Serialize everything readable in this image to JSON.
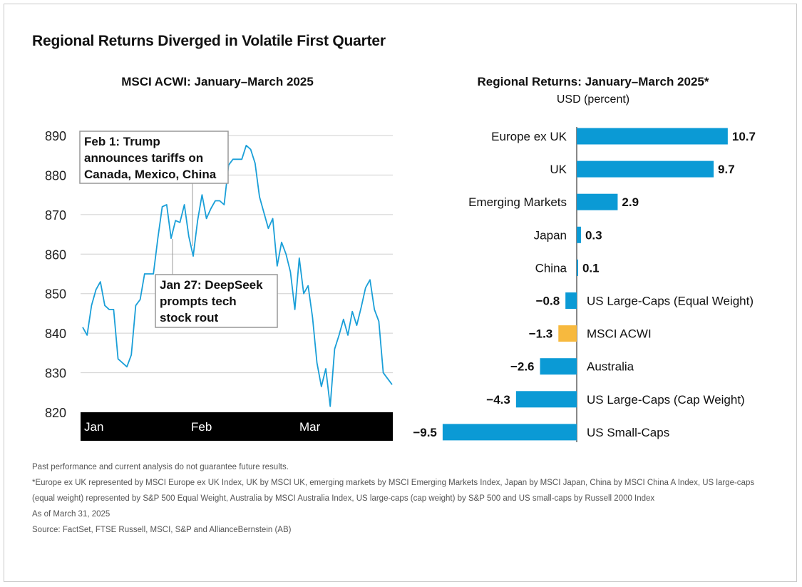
{
  "title": "Regional Returns Diverged in Volatile First Quarter",
  "left_subtitle": "MSCI ACWI: January–March 2025",
  "right_subtitle": "Regional Returns: January–March 2025*",
  "right_unit": "USD (percent)",
  "colors": {
    "line": "#1a9fd8",
    "bar": "#0b9ad5",
    "highlight_bar": "#f7b93e",
    "axis_band": "#000000",
    "grid": "#cfcfcf"
  },
  "chart_data": [
    {
      "type": "line",
      "title": "MSCI ACWI: January–March 2025",
      "xlabel": "",
      "ylabel": "",
      "ylim": [
        820,
        890
      ],
      "yticks": [
        820,
        830,
        840,
        850,
        860,
        870,
        880,
        890
      ],
      "month_labels": [
        "Jan",
        "Feb",
        "Mar"
      ],
      "grid": true,
      "series": [
        {
          "values": [
            841.5,
            839.5,
            847,
            851,
            853,
            847,
            846,
            846,
            833.5,
            832.5,
            831.5,
            834.5,
            847,
            848.5,
            855,
            855,
            855,
            864,
            872,
            872.5,
            864,
            868.5,
            868,
            872.5,
            864.5,
            859.5,
            868.5,
            875,
            869,
            871.5,
            873.5,
            873.5,
            872.5,
            882.5,
            884,
            884,
            884,
            887.5,
            886.5,
            883,
            874.5,
            870.5,
            866.5,
            869,
            857,
            863,
            860,
            855.5,
            846,
            859,
            850,
            852,
            844,
            832.5,
            826.5,
            831,
            821.5,
            836,
            839.5,
            843.5,
            839.5,
            845.5,
            842,
            846.5,
            851.5,
            853.5,
            846,
            843,
            830,
            828.5,
            827
          ]
        }
      ],
      "annotations": [
        {
          "label": "Feb 1: Trump announces tariffs on Canada, Mexico, China",
          "lines": [
            "Feb 1: Trump",
            "announces tariffs on",
            "Canada, Mexico, China"
          ]
        },
        {
          "label": "Jan 27: DeepSeek prompts tech stock rout",
          "lines": [
            "Jan 27: DeepSeek",
            "prompts tech",
            "stock rout"
          ]
        }
      ]
    },
    {
      "type": "bar",
      "title": "Regional Returns: January–March 2025*",
      "ylabel": "USD (percent)",
      "orientation": "horizontal",
      "categories": [
        "Europe ex UK",
        "UK",
        "Emerging Markets",
        "Japan",
        "China",
        "US Large-Caps (Equal Weight)",
        "MSCI ACWI",
        "Australia",
        "US Large-Caps (Cap Weight)",
        "US Small-Caps"
      ],
      "values": [
        10.7,
        9.7,
        2.9,
        0.3,
        0.1,
        -0.8,
        -1.3,
        -2.6,
        -4.3,
        -9.5
      ],
      "value_labels": [
        "10.7",
        "9.7",
        "2.9",
        "0.3",
        "0.1",
        "−0.8",
        "−1.3",
        "−2.6",
        "−4.3",
        "−9.5"
      ],
      "highlight": "MSCI ACWI"
    }
  ],
  "footnotes": [
    "Past performance and current analysis do not guarantee future results.",
    "*Europe ex UK represented by MSCI Europe ex UK Index, UK by MSCI UK, emerging markets by MSCI Emerging Markets Index, Japan by MSCI Japan, China by MSCI China A Index, US large-caps (equal weight) represented by S&P 500 Equal Weight, Australia by MSCI Australia Index, US large-caps (cap weight) by S&P 500 and US small-caps by Russell 2000 Index",
    "As of March 31, 2025",
    "Source: FactSet, FTSE Russell, MSCI, S&P and AllianceBernstein (AB)"
  ]
}
